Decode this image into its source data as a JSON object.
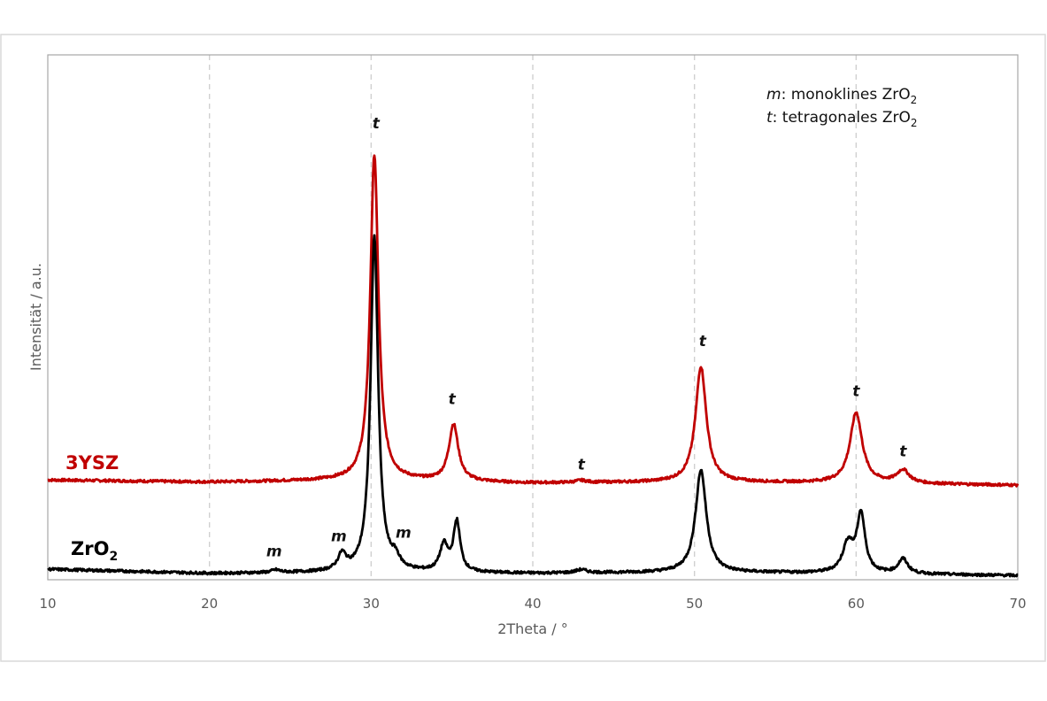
{
  "chart_data": {
    "type": "line",
    "title": "",
    "xlabel": "2Theta  /  °",
    "ylabel": "Intensität  / a.u.",
    "xlim": [
      10,
      70
    ],
    "ylim": [
      0,
      1
    ],
    "xticks": [
      10,
      20,
      30,
      40,
      50,
      60,
      70
    ],
    "tick_labels": [
      "10",
      "20",
      "30",
      "40",
      "50",
      "60",
      "70"
    ],
    "grid": "vertical dashed",
    "legend": {
      "placement": "top-right",
      "line1": {
        "symbol": "m",
        "text": ": monoklines ZrO",
        "sub": "2"
      },
      "line2": {
        "symbol": "t",
        "text": ": tetragonales ZrO",
        "sub": "2"
      }
    },
    "series": [
      {
        "name": "3YSZ",
        "label": "3YSZ",
        "color": "#c00000",
        "baseline": [
          [
            10,
            0.19
          ],
          [
            20,
            0.186
          ],
          [
            30,
            0.19
          ],
          [
            40,
            0.184
          ],
          [
            50,
            0.186
          ],
          [
            60,
            0.184
          ],
          [
            70,
            0.18
          ]
        ],
        "peaks": [
          {
            "x": 30.2,
            "h": 0.62,
            "w": 0.3
          },
          {
            "x": 35.1,
            "h": 0.108,
            "w": 0.35
          },
          {
            "x": 43.0,
            "h": 0.004,
            "w": 0.4
          },
          {
            "x": 50.4,
            "h": 0.22,
            "w": 0.4
          },
          {
            "x": 60.0,
            "h": 0.134,
            "w": 0.45
          },
          {
            "x": 62.9,
            "h": 0.025,
            "w": 0.45
          }
        ]
      },
      {
        "name": "ZrO2",
        "label": "ZrO",
        "label_sub": "2",
        "color": "#000000",
        "baseline": [
          [
            10,
            0.02
          ],
          [
            20,
            0.012
          ],
          [
            30,
            0.014
          ],
          [
            40,
            0.012
          ],
          [
            50,
            0.014
          ],
          [
            60,
            0.012
          ],
          [
            70,
            0.008
          ]
        ],
        "peaks": [
          {
            "x": 24.1,
            "h": 0.005,
            "w": 0.3
          },
          {
            "x": 28.2,
            "h": 0.03,
            "w": 0.3
          },
          {
            "x": 30.2,
            "h": 0.64,
            "w": 0.28
          },
          {
            "x": 31.5,
            "h": 0.02,
            "w": 0.3
          },
          {
            "x": 34.5,
            "h": 0.05,
            "w": 0.3
          },
          {
            "x": 35.3,
            "h": 0.095,
            "w": 0.25
          },
          {
            "x": 43.0,
            "h": 0.006,
            "w": 0.4
          },
          {
            "x": 50.4,
            "h": 0.195,
            "w": 0.4
          },
          {
            "x": 59.5,
            "h": 0.055,
            "w": 0.4
          },
          {
            "x": 60.3,
            "h": 0.11,
            "w": 0.3
          },
          {
            "x": 62.9,
            "h": 0.028,
            "w": 0.35
          }
        ]
      }
    ],
    "annotations": [
      {
        "text": "t",
        "x": 30.3,
        "y": 0.86
      },
      {
        "text": "t",
        "x": 35.0,
        "y": 0.335
      },
      {
        "text": "t",
        "x": 43.0,
        "y": 0.21
      },
      {
        "text": "t",
        "x": 50.5,
        "y": 0.445
      },
      {
        "text": "t",
        "x": 60.0,
        "y": 0.35
      },
      {
        "text": "t",
        "x": 62.9,
        "y": 0.235
      },
      {
        "text": "m",
        "x": 24.0,
        "y": 0.045
      },
      {
        "text": "m",
        "x": 28.0,
        "y": 0.073
      },
      {
        "text": "m",
        "x": 32.0,
        "y": 0.08
      }
    ]
  }
}
